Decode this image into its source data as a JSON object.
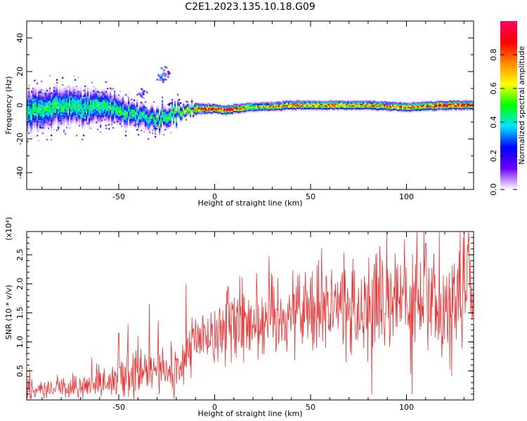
{
  "figure": {
    "title": "C2E1.2023.135.10.18.G09"
  },
  "chart_data": [
    {
      "type": "heatmap",
      "xlabel": "Height of straight line (km)",
      "ylabel": "Frequency (Hz)",
      "xlim": [
        -98,
        135
      ],
      "ylim": [
        -50,
        50
      ],
      "xticks": [
        -50,
        0,
        50,
        100
      ],
      "xtick_labels": [
        "-50",
        "0",
        "50",
        "100"
      ],
      "yticks": [
        -40,
        -20,
        0,
        20,
        40
      ],
      "ytick_labels": [
        "-40",
        "-20",
        "0",
        "20",
        "40"
      ],
      "colorbar": {
        "label": "Normalized spectral amplitude",
        "range": [
          0,
          1
        ],
        "ticks": [
          0.0,
          0.2,
          0.4,
          0.6,
          0.8
        ],
        "tick_labels": [
          "0.0",
          "0.2",
          "0.4",
          "0.6",
          "0.8"
        ],
        "colormap": [
          "#ffffff",
          "#6a00ff",
          "#0000ff",
          "#00e5ff",
          "#00ff00",
          "#ffff00",
          "#ff8800",
          "#ff0000",
          "#ff0066"
        ]
      },
      "ridge": {
        "x": [
          -98,
          -80,
          -60,
          -50,
          -40,
          -35,
          -30,
          -20,
          -14,
          -10,
          0,
          5,
          10,
          20,
          40,
          60,
          80,
          100,
          120,
          135
        ],
        "freq": [
          -3,
          -1,
          -1,
          -3,
          -6,
          -8,
          -8,
          -5,
          -2,
          -2,
          -2,
          -3,
          -2,
          -1,
          0,
          0,
          0,
          -1,
          0,
          0
        ],
        "width": [
          9,
          8,
          7,
          6,
          5,
          5,
          5,
          4,
          2.5,
          2.5,
          2,
          2,
          2,
          2,
          2,
          2,
          2,
          2,
          2,
          2
        ],
        "peak_amplitude": [
          0.45,
          0.45,
          0.45,
          0.45,
          0.45,
          0.4,
          0.45,
          0.5,
          0.6,
          0.7,
          0.85,
          0.9,
          0.8,
          0.6,
          0.75,
          0.7,
          0.7,
          0.75,
          0.9,
          0.85
        ]
      },
      "extra_blobs": [
        {
          "x": -28,
          "freq": 17,
          "amplitude": 0.2
        },
        {
          "x": -26,
          "freq": 20,
          "amplitude": 0.15
        },
        {
          "x": -38,
          "freq": 8,
          "amplitude": 0.1
        }
      ]
    },
    {
      "type": "line",
      "xlabel": "Height of straight line (km)",
      "ylabel": "SNR (10 * v/v)",
      "yunit": "(x10⁴)",
      "xlim": [
        -98,
        135
      ],
      "ylim": [
        0,
        2.9
      ],
      "xticks": [
        -50,
        0,
        50,
        100
      ],
      "xtick_labels": [
        "-50",
        "0",
        "50",
        "100"
      ],
      "yticks": [
        0.5,
        1.0,
        1.5,
        2.0,
        2.5
      ],
      "ytick_labels": [
        "0.5",
        "1.0",
        "1.5",
        "2.0",
        "2.5"
      ],
      "color": "#ee3333",
      "series": [
        {
          "x": [
            -98,
            -88,
            -78,
            -68,
            -58,
            -52,
            -45,
            -38,
            -33,
            -28,
            -22,
            -17,
            -14,
            -10,
            -5,
            0,
            5,
            10,
            20,
            30,
            40,
            50,
            60,
            70,
            80,
            85,
            90,
            100,
            110,
            120,
            125,
            130,
            135
          ],
          "y": [
            0.15,
            0.2,
            0.2,
            0.22,
            0.22,
            0.3,
            0.38,
            0.42,
            0.5,
            0.5,
            0.52,
            0.55,
            0.9,
            1.0,
            1.1,
            1.15,
            1.2,
            1.3,
            1.4,
            1.45,
            1.5,
            1.6,
            1.62,
            1.55,
            1.6,
            1.6,
            1.6,
            1.65,
            1.6,
            1.6,
            1.65,
            1.7,
            1.7
          ],
          "spread": [
            0.12,
            0.12,
            0.13,
            0.14,
            0.15,
            0.22,
            0.28,
            0.3,
            0.32,
            0.28,
            0.28,
            0.3,
            0.35,
            0.3,
            0.3,
            0.32,
            0.35,
            0.4,
            0.45,
            0.45,
            0.45,
            0.5,
            0.5,
            0.55,
            0.6,
            0.6,
            0.55,
            0.6,
            0.6,
            0.6,
            0.6,
            0.6,
            0.6
          ],
          "spikes": [
            {
              "x": -98,
              "y": 0.75
            },
            {
              "x": -50,
              "y": 1.15
            },
            {
              "x": -34,
              "y": 1.65
            },
            {
              "x": -15,
              "y": 2.0
            },
            {
              "x": 7,
              "y": 1.95
            },
            {
              "x": 82,
              "y": 0.1
            },
            {
              "x": 103,
              "y": 0.1
            },
            {
              "x": 86,
              "y": 2.65
            },
            {
              "x": 110,
              "y": 2.7
            },
            {
              "x": 128,
              "y": 2.9
            }
          ]
        }
      ]
    }
  ]
}
